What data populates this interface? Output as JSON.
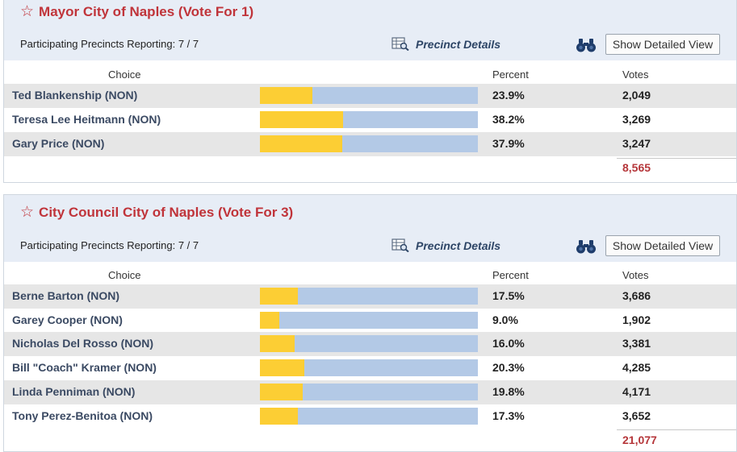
{
  "races": [
    {
      "title": "Mayor City of Naples (Vote For 1)",
      "reporting": "Participating Precincts Reporting: 7 / 7",
      "precinct_details": "Precinct Details",
      "detail_button": "Show Detailed View",
      "columns": {
        "choice": "Choice",
        "percent": "Percent",
        "votes": "Votes"
      },
      "candidates": [
        {
          "name": "Ted Blankenship (NON)",
          "percent": "23.9%",
          "share": 0.239,
          "votes": "2,049"
        },
        {
          "name": "Teresa Lee Heitmann (NON)",
          "percent": "38.2%",
          "share": 0.382,
          "votes": "3,269"
        },
        {
          "name": "Gary Price (NON)",
          "percent": "37.9%",
          "share": 0.379,
          "votes": "3,247"
        }
      ],
      "total": "8,565"
    },
    {
      "title": "City Council City of Naples (Vote For 3)",
      "reporting": "Participating Precincts Reporting: 7 / 7",
      "precinct_details": "Precinct Details",
      "detail_button": "Show Detailed View",
      "columns": {
        "choice": "Choice",
        "percent": "Percent",
        "votes": "Votes"
      },
      "candidates": [
        {
          "name": "Berne Barton (NON)",
          "percent": "17.5%",
          "share": 0.175,
          "votes": "3,686"
        },
        {
          "name": "Garey Cooper (NON)",
          "percent": "9.0%",
          "share": 0.09,
          "votes": "1,902"
        },
        {
          "name": "Nicholas Del Rosso (NON)",
          "percent": "16.0%",
          "share": 0.16,
          "votes": "3,381"
        },
        {
          "name": "Bill \"Coach\" Kramer (NON)",
          "percent": "20.3%",
          "share": 0.203,
          "votes": "4,285"
        },
        {
          "name": "Linda Penniman (NON)",
          "percent": "19.8%",
          "share": 0.198,
          "votes": "4,171"
        },
        {
          "name": "Tony Perez-Benitoa (NON)",
          "percent": "17.3%",
          "share": 0.173,
          "votes": "3,652"
        }
      ],
      "total": "21,077"
    }
  ],
  "colors": {
    "title": "#c0343a",
    "bar_fill": "#fcce34",
    "bar_track": "#b3c9e6",
    "total": "#b5363a"
  },
  "icons": {
    "favorite": "star-outline-icon",
    "precinct": "spreadsheet-magnifier-icon",
    "detail": "binoculars-icon"
  }
}
